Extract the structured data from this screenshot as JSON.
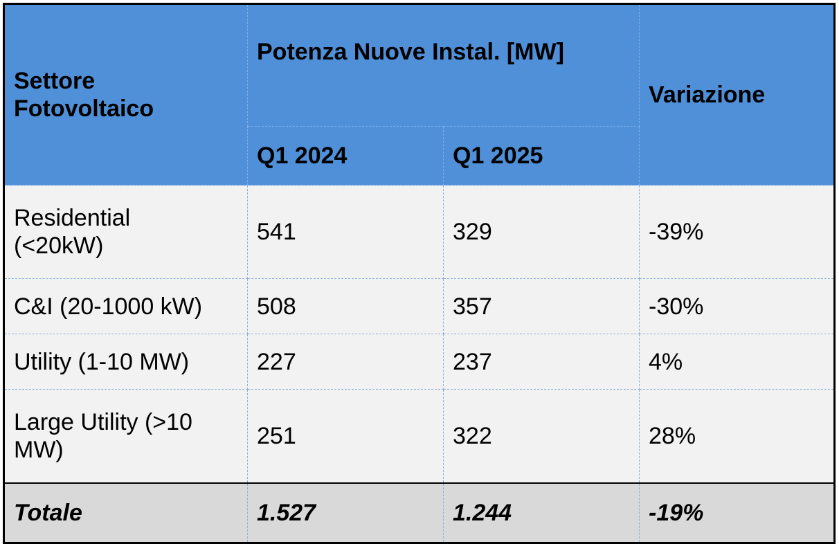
{
  "header": {
    "sector_line1": "Settore",
    "sector_line2": "Fotovoltaico",
    "power": "Potenza Nuove Instal. [MW]",
    "period1": "Q1 2024",
    "period2": "Q1 2025",
    "variation": "Variazione"
  },
  "rows": [
    {
      "label_line1": "Residential",
      "label_line2": "(<20kW)",
      "q1_2024": "541",
      "q1_2025": "329",
      "variation": "-39%"
    },
    {
      "label": "C&I (20-1000 kW)",
      "q1_2024": "508",
      "q1_2025": "357",
      "variation": "-30%"
    },
    {
      "label": "Utility (1-10 MW)",
      "q1_2024": "227",
      "q1_2025": "237",
      "variation": "4%"
    },
    {
      "label_line1": "Large Utility (>10",
      "label_line2": "MW)",
      "q1_2024": "251",
      "q1_2025": "322",
      "variation": "28%"
    }
  ],
  "total": {
    "label": "Totale",
    "q1_2024": "1.527",
    "q1_2025": "1.244",
    "variation": "-19%"
  },
  "colors": {
    "header_bg": "#4f90d9",
    "row_bg": "#f2f2f2",
    "total_bg": "#d9d9d9"
  }
}
